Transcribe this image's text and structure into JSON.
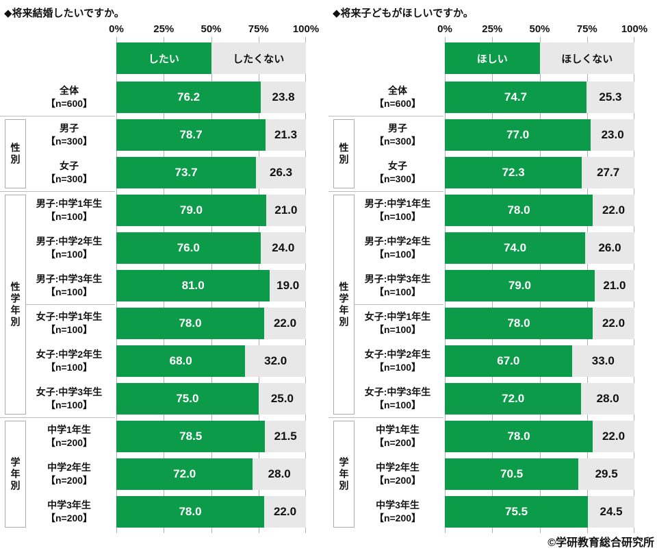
{
  "footer": "©学研教育総合研究所",
  "colors": {
    "bar_yes": "#0c9c49",
    "bar_no": "#e8e8e8",
    "grid": "#b0b0b0",
    "box_border": "#aaaaaa",
    "divider": "#bbbbbb"
  },
  "chart_data": [
    {
      "type": "bar",
      "orientation": "horizontal-stacked",
      "title": "◆将来結婚したいですか。",
      "legend": [
        "したい",
        "したくない"
      ],
      "xlim": [
        0,
        100
      ],
      "x_ticks": [
        "0%",
        "25%",
        "50%",
        "75%",
        "100%"
      ],
      "grid": "ticks-at-25-percent",
      "legend_position": "top-row-50-50",
      "categories": [
        [
          "全体",
          "【n=600】"
        ],
        [
          "男子",
          "【n=300】"
        ],
        [
          "女子",
          "【n=300】"
        ],
        [
          "男子:中学1年生",
          "【n=100】"
        ],
        [
          "男子:中学2年生",
          "【n=100】"
        ],
        [
          "男子:中学3年生",
          "【n=100】"
        ],
        [
          "女子:中学1年生",
          "【n=100】"
        ],
        [
          "女子:中学2年生",
          "【n=100】"
        ],
        [
          "女子:中学3年生",
          "【n=100】"
        ],
        [
          "中学1年生",
          "【n=200】"
        ],
        [
          "中学2年生",
          "【n=200】"
        ],
        [
          "中学3年生",
          "【n=200】"
        ]
      ],
      "series": [
        {
          "name": "したい",
          "values": [
            76.2,
            78.7,
            73.7,
            79.0,
            76.0,
            81.0,
            78.0,
            68.0,
            75.0,
            78.5,
            72.0,
            78.0
          ]
        },
        {
          "name": "したくない",
          "values": [
            23.8,
            21.3,
            26.3,
            21.0,
            24.0,
            19.0,
            22.0,
            32.0,
            25.0,
            21.5,
            28.0,
            22.0
          ]
        }
      ],
      "groups": [
        {
          "label": "性別",
          "from": 1,
          "to": 2
        },
        {
          "label": "性学年別",
          "from": 3,
          "to": 8
        },
        {
          "label": "学年別",
          "from": 9,
          "to": 11
        }
      ],
      "dividers": [
        {
          "at": 1,
          "full": true
        },
        {
          "at": 3,
          "full": true
        },
        {
          "at": 6,
          "full": false
        },
        {
          "at": 9,
          "full": true
        }
      ]
    },
    {
      "type": "bar",
      "orientation": "horizontal-stacked",
      "title": "◆将来子どもがほしいですか。",
      "legend": [
        "ほしい",
        "ほしくない"
      ],
      "xlim": [
        0,
        100
      ],
      "x_ticks": [
        "0%",
        "25%",
        "50%",
        "75%",
        "100%"
      ],
      "grid": "ticks-at-25-percent",
      "legend_position": "top-row-50-50",
      "categories": [
        [
          "全体",
          "【n=600】"
        ],
        [
          "男子",
          "【n=300】"
        ],
        [
          "女子",
          "【n=300】"
        ],
        [
          "男子:中学1年生",
          "【n=100】"
        ],
        [
          "男子:中学2年生",
          "【n=100】"
        ],
        [
          "男子:中学3年生",
          "【n=100】"
        ],
        [
          "女子:中学1年生",
          "【n=100】"
        ],
        [
          "女子:中学2年生",
          "【n=100】"
        ],
        [
          "女子:中学3年生",
          "【n=100】"
        ],
        [
          "中学1年生",
          "【n=200】"
        ],
        [
          "中学2年生",
          "【n=200】"
        ],
        [
          "中学3年生",
          "【n=200】"
        ]
      ],
      "series": [
        {
          "name": "ほしい",
          "values": [
            74.7,
            77.0,
            72.3,
            78.0,
            74.0,
            79.0,
            78.0,
            67.0,
            72.0,
            78.0,
            70.5,
            75.5
          ]
        },
        {
          "name": "ほしくない",
          "values": [
            25.3,
            23.0,
            27.7,
            22.0,
            26.0,
            21.0,
            22.0,
            33.0,
            28.0,
            22.0,
            29.5,
            24.5
          ]
        }
      ],
      "groups": [
        {
          "label": "性別",
          "from": 1,
          "to": 2
        },
        {
          "label": "性学年別",
          "from": 3,
          "to": 8
        },
        {
          "label": "学年別",
          "from": 9,
          "to": 11
        }
      ],
      "dividers": [
        {
          "at": 1,
          "full": true
        },
        {
          "at": 3,
          "full": true
        },
        {
          "at": 6,
          "full": false
        },
        {
          "at": 9,
          "full": true
        }
      ]
    }
  ]
}
